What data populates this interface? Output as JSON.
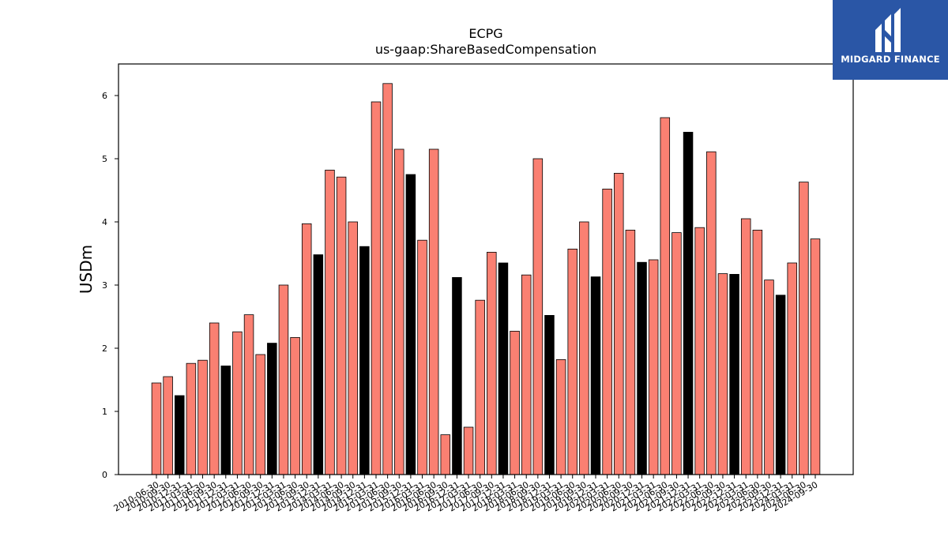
{
  "brand": {
    "name": "MIDGARD FINANCE",
    "bg_color": "#2a56a6"
  },
  "chart_data": {
    "type": "bar",
    "title": "ECPG",
    "subtitle": "us-gaap:ShareBasedCompensation",
    "xlabel": "",
    "ylabel": "USDm",
    "ylim": [
      0,
      6.5
    ],
    "yticks": [
      0,
      1,
      2,
      3,
      4,
      5,
      6
    ],
    "grid": false,
    "colors": {
      "quarter": "#fa8072",
      "fiscal_year_end": "#000000",
      "edge": "#000000"
    },
    "categories": [
      "2010-06-30",
      "2010-09-30",
      "2010-12-31",
      "2011-03-31",
      "2011-06-30",
      "2011-09-30",
      "2011-12-31",
      "2012-03-31",
      "2012-06-30",
      "2012-09-30",
      "2012-12-31",
      "2013-03-31",
      "2013-06-30",
      "2013-09-30",
      "2013-12-31",
      "2014-03-31",
      "2014-06-30",
      "2014-09-30",
      "2014-12-31",
      "2015-03-31",
      "2015-06-30",
      "2015-09-30",
      "2015-12-31",
      "2016-03-31",
      "2016-06-30",
      "2016-09-30",
      "2016-12-31",
      "2017-03-31",
      "2017-06-30",
      "2017-09-30",
      "2017-12-31",
      "2018-03-31",
      "2018-06-30",
      "2018-09-30",
      "2018-12-31",
      "2019-03-31",
      "2019-06-30",
      "2019-09-30",
      "2019-12-31",
      "2020-03-31",
      "2020-06-30",
      "2020-09-30",
      "2020-12-31",
      "2021-03-31",
      "2021-06-30",
      "2021-09-30",
      "2021-12-31",
      "2022-03-31",
      "2022-06-30",
      "2022-09-30",
      "2022-12-31",
      "2023-03-31",
      "2023-06-30",
      "2023-09-30",
      "2023-12-31",
      "2024-03-31",
      "2024-06-30",
      "2024-09-30"
    ],
    "values": [
      1.45,
      1.55,
      1.25,
      1.76,
      1.81,
      2.4,
      1.72,
      2.26,
      2.53,
      1.9,
      2.08,
      3.0,
      2.17,
      3.97,
      3.48,
      4.82,
      4.71,
      4.0,
      3.61,
      5.9,
      6.19,
      5.15,
      4.75,
      3.71,
      5.15,
      0.63,
      3.12,
      0.75,
      2.76,
      3.52,
      3.35,
      2.27,
      3.16,
      5.0,
      2.52,
      1.82,
      3.57,
      4.0,
      3.13,
      4.52,
      4.77,
      3.87,
      3.36,
      3.4,
      5.65,
      3.83,
      5.42,
      3.91,
      5.11,
      3.18,
      3.17,
      4.05,
      3.87,
      3.08,
      2.84,
      3.35,
      4.63,
      3.73
    ],
    "highlight": [
      false,
      false,
      true,
      false,
      false,
      false,
      true,
      false,
      false,
      false,
      true,
      false,
      false,
      false,
      true,
      false,
      false,
      false,
      true,
      false,
      false,
      false,
      true,
      false,
      false,
      false,
      true,
      false,
      false,
      false,
      true,
      false,
      false,
      false,
      true,
      false,
      false,
      false,
      true,
      false,
      false,
      false,
      true,
      false,
      false,
      false,
      true,
      false,
      false,
      false,
      true,
      false,
      false,
      false,
      true,
      false,
      false,
      false
    ]
  }
}
